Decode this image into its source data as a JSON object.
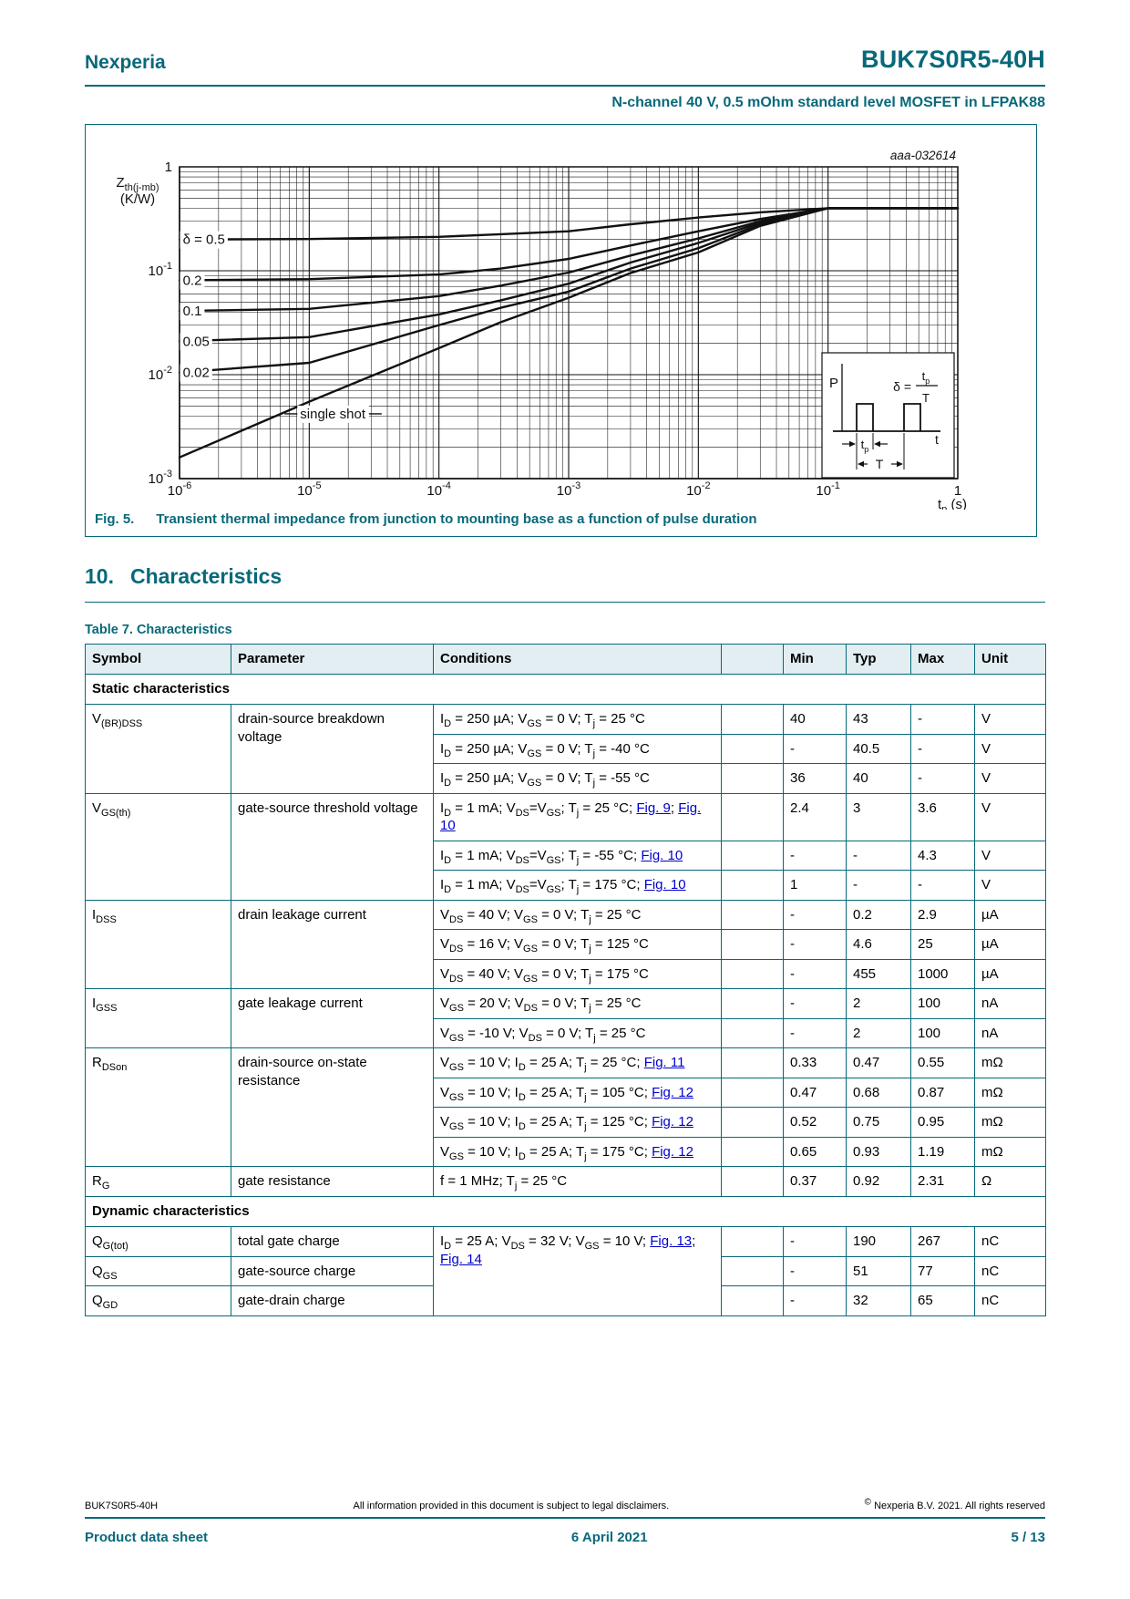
{
  "colors": {
    "teal": "#07697a",
    "link_blue": "#0000cc",
    "table_header_bg": "#e2eef1",
    "grid": "#111111"
  },
  "header": {
    "brand": "Nexperia",
    "part_number": "BUK7S0R5-40H",
    "subtitle": "N-channel 40 V, 0.5 mOhm standard level MOSFET in LFPAK88"
  },
  "figure": {
    "caption_label": "Fig. 5.",
    "caption_text": "Transient thermal impedance from junction to mounting base as a function of pulse duration"
  },
  "section": {
    "number": "10.",
    "title": "Characteristics"
  },
  "table": {
    "title": "Table 7. Characteristics",
    "columns": [
      "Symbol",
      "Parameter",
      "Conditions",
      "",
      "Min",
      "Typ",
      "Max",
      "Unit"
    ],
    "sections": [
      {
        "name": "Static characteristics",
        "entries": [
          {
            "symbol": "V_{(BR)DSS}",
            "parameter": "drain-source breakdown voltage",
            "rows": [
              {
                "conditions": "I_{D} = 250 µA; V_{GS} = 0 V; T_{j} = 25 °C",
                "min": "40",
                "typ": "43",
                "max": "-",
                "unit": "V"
              },
              {
                "conditions": "I_{D} = 250 µA; V_{GS} = 0 V; T_{j} = -40 °C",
                "min": "-",
                "typ": "40.5",
                "max": "-",
                "unit": "V"
              },
              {
                "conditions": "I_{D} = 250 µA; V_{GS} = 0 V; T_{j} = -55 °C",
                "min": "36",
                "typ": "40",
                "max": "-",
                "unit": "V"
              }
            ]
          },
          {
            "symbol": "V_{GS(th)}",
            "parameter": "gate-source threshold voltage",
            "rows": [
              {
                "conditions": "I_{D} = 1 mA; V_{DS}=V_{GS}; T_{j} = 25 °C; [[Fig. 9]]; [[Fig. 10]]",
                "min": "2.4",
                "typ": "3",
                "max": "3.6",
                "unit": "V"
              },
              {
                "conditions": "I_{D} = 1 mA; V_{DS}=V_{GS}; T_{j} = -55 °C; [[Fig. 10]]",
                "min": "-",
                "typ": "-",
                "max": "4.3",
                "unit": "V"
              },
              {
                "conditions": "I_{D} = 1 mA; V_{DS}=V_{GS}; T_{j} = 175 °C; [[Fig. 10]]",
                "min": "1",
                "typ": "-",
                "max": "-",
                "unit": "V"
              }
            ]
          },
          {
            "symbol": "I_{DSS}",
            "parameter": "drain leakage current",
            "rows": [
              {
                "conditions": "V_{DS} = 40 V; V_{GS} = 0 V; T_{j} = 25 °C",
                "min": "-",
                "typ": "0.2",
                "max": "2.9",
                "unit": "µA"
              },
              {
                "conditions": "V_{DS} = 16 V; V_{GS} = 0 V; T_{j} = 125 °C",
                "min": "-",
                "typ": "4.6",
                "max": "25",
                "unit": "µA"
              },
              {
                "conditions": "V_{DS} = 40 V; V_{GS} = 0 V; T_{j} = 175 °C",
                "min": "-",
                "typ": "455",
                "max": "1000",
                "unit": "µA"
              }
            ]
          },
          {
            "symbol": "I_{GSS}",
            "parameter": "gate leakage current",
            "rows": [
              {
                "conditions": "V_{GS} = 20 V; V_{DS} = 0 V; T_{j} = 25 °C",
                "min": "-",
                "typ": "2",
                "max": "100",
                "unit": "nA"
              },
              {
                "conditions": "V_{GS} = -10 V; V_{DS} = 0 V; T_{j} = 25 °C",
                "min": "-",
                "typ": "2",
                "max": "100",
                "unit": "nA"
              }
            ]
          },
          {
            "symbol": "R_{DSon}",
            "parameter": "drain-source on-state resistance",
            "rows": [
              {
                "conditions": "V_{GS} = 10 V; I_{D} = 25 A; T_{j} = 25 °C; [[Fig. 11]]",
                "min": "0.33",
                "typ": "0.47",
                "max": "0.55",
                "unit": "mΩ"
              },
              {
                "conditions": "V_{GS} = 10 V; I_{D} = 25 A; T_{j} = 105 °C; [[Fig. 12]]",
                "min": "0.47",
                "typ": "0.68",
                "max": "0.87",
                "unit": "mΩ"
              },
              {
                "conditions": "V_{GS} = 10 V; I_{D} = 25 A; T_{j} = 125 °C; [[Fig. 12]]",
                "min": "0.52",
                "typ": "0.75",
                "max": "0.95",
                "unit": "mΩ"
              },
              {
                "conditions": "V_{GS} = 10 V; I_{D} = 25 A; T_{j} = 175 °C; [[Fig. 12]]",
                "min": "0.65",
                "typ": "0.93",
                "max": "1.19",
                "unit": "mΩ"
              }
            ]
          },
          {
            "symbol": "R_{G}",
            "parameter": "gate resistance",
            "rows": [
              {
                "conditions": "f = 1 MHz; T_{j} = 25 °C",
                "min": "0.37",
                "typ": "0.92",
                "max": "2.31",
                "unit": "Ω"
              }
            ]
          }
        ]
      },
      {
        "name": "Dynamic characteristics",
        "conditions": "I_{D} = 25 A; V_{DS} = 32 V; V_{GS} = 10 V; [[Fig. 13]]; [[Fig. 14]]",
        "entries": [
          {
            "symbol": "Q_{G(tot)}",
            "parameter": "total gate charge",
            "rows": [
              {
                "min": "-",
                "typ": "190",
                "max": "267",
                "unit": "nC"
              }
            ]
          },
          {
            "symbol": "Q_{GS}",
            "parameter": "gate-source charge",
            "rows": [
              {
                "min": "-",
                "typ": "51",
                "max": "77",
                "unit": "nC"
              }
            ]
          },
          {
            "symbol": "Q_{GD}",
            "parameter": "gate-drain charge",
            "rows": [
              {
                "min": "-",
                "typ": "32",
                "max": "65",
                "unit": "nC"
              }
            ]
          }
        ]
      }
    ]
  },
  "footer": {
    "part_number": "BUK7S0R5-40H",
    "disclaimer": "All information provided in this document is subject to legal disclaimers.",
    "copyright": "^{©} Nexperia B.V. 2021. All rights reserved",
    "doc_type": "Product data sheet",
    "date": "6 April 2021",
    "page": "5 / 13"
  },
  "chart_data": {
    "type": "line",
    "title": "",
    "xlabel": "t_{p} (s)",
    "ylabel_lines": [
      "Z_{th(j-mb)}",
      "(K/W)"
    ],
    "xscale": "log",
    "yscale": "log",
    "xlim": [
      1e-06,
      1
    ],
    "ylim": [
      0.001,
      1
    ],
    "grid": "log-decades-with-minor",
    "legend_position": "inline-labels",
    "plot_code": "aaa-032614",
    "xticks": {
      "values": [
        1e-06,
        1e-05,
        0.0001,
        0.001,
        0.01,
        0.1,
        1
      ],
      "labels": [
        "10^{-6}",
        "10^{-5}",
        "10^{-4}",
        "10^{-3}",
        "10^{-2}",
        "10^{-1}",
        "1"
      ]
    },
    "yticks": {
      "values": [
        1,
        0.1,
        0.01,
        0.001
      ],
      "labels": [
        "1",
        "10^{-1}",
        "10^{-2}",
        "10^{-3}"
      ]
    },
    "series": [
      {
        "name": "δ = 0.5",
        "label_at": [
          1.06e-06,
          0.2
        ],
        "points": [
          [
            1e-06,
            0.2
          ],
          [
            1e-05,
            0.202
          ],
          [
            0.0001,
            0.212
          ],
          [
            0.0003,
            0.225
          ],
          [
            0.001,
            0.24
          ],
          [
            0.003,
            0.28
          ],
          [
            0.01,
            0.325
          ],
          [
            0.03,
            0.365
          ],
          [
            0.1,
            0.4
          ],
          [
            1,
            0.4
          ]
        ]
      },
      {
        "name": "0.2",
        "label_at": [
          1.06e-06,
          0.081
        ],
        "points": [
          [
            1e-06,
            0.081
          ],
          [
            1e-05,
            0.083
          ],
          [
            0.0001,
            0.092
          ],
          [
            0.0003,
            0.105
          ],
          [
            0.001,
            0.13
          ],
          [
            0.003,
            0.175
          ],
          [
            0.01,
            0.24
          ],
          [
            0.03,
            0.315
          ],
          [
            0.1,
            0.4
          ],
          [
            1,
            0.4
          ]
        ]
      },
      {
        "name": "0.1",
        "label_at": [
          1.06e-06,
          0.041
        ],
        "points": [
          [
            1e-06,
            0.041
          ],
          [
            1e-05,
            0.043
          ],
          [
            0.0001,
            0.057
          ],
          [
            0.0003,
            0.072
          ],
          [
            0.001,
            0.096
          ],
          [
            0.003,
            0.14
          ],
          [
            0.01,
            0.205
          ],
          [
            0.03,
            0.3
          ],
          [
            0.1,
            0.4
          ],
          [
            1,
            0.4
          ]
        ]
      },
      {
        "name": "0.05",
        "label_at": [
          1.06e-06,
          0.021
        ],
        "points": [
          [
            1e-06,
            0.021
          ],
          [
            1e-05,
            0.023
          ],
          [
            0.0001,
            0.038
          ],
          [
            0.0003,
            0.052
          ],
          [
            0.001,
            0.075
          ],
          [
            0.003,
            0.12
          ],
          [
            0.01,
            0.185
          ],
          [
            0.03,
            0.29
          ],
          [
            0.1,
            0.4
          ],
          [
            1,
            0.4
          ]
        ]
      },
      {
        "name": "0.02",
        "label_at": [
          1.06e-06,
          0.0105
        ],
        "points": [
          [
            1e-06,
            0.0105
          ],
          [
            1e-05,
            0.013
          ],
          [
            0.0001,
            0.03
          ],
          [
            0.0003,
            0.044
          ],
          [
            0.001,
            0.063
          ],
          [
            0.003,
            0.105
          ],
          [
            0.01,
            0.165
          ],
          [
            0.03,
            0.28
          ],
          [
            0.1,
            0.4
          ],
          [
            1,
            0.4
          ]
        ]
      },
      {
        "name": "single shot",
        "label_at": [
          8.5e-06,
          0.0042
        ],
        "callout": true,
        "points": [
          [
            1e-06,
            0.0016
          ],
          [
            1e-05,
            0.0055
          ],
          [
            0.0001,
            0.018
          ],
          [
            0.0003,
            0.032
          ],
          [
            0.001,
            0.055
          ],
          [
            0.003,
            0.095
          ],
          [
            0.01,
            0.15
          ],
          [
            0.03,
            0.27
          ],
          [
            0.1,
            0.4
          ],
          [
            1,
            0.4
          ]
        ]
      }
    ],
    "inset": {
      "y_axis_label": "P",
      "x_axis_label": "t",
      "pulse_width_label": "t_{p}",
      "period_label": "T",
      "duty_lhs": "δ =",
      "duty_num": "t_{p}",
      "duty_den": "T"
    }
  }
}
